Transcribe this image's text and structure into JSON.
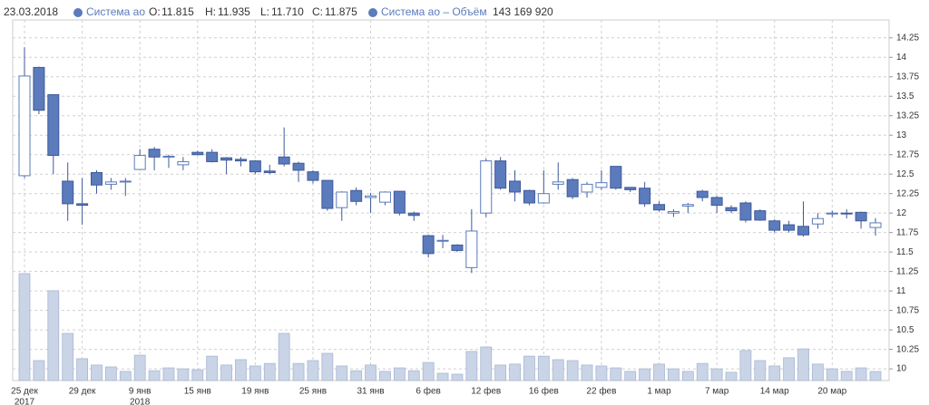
{
  "chart_data": {
    "type": "candlestick",
    "readout": {
      "date": "23.03.2018",
      "labels": [
        "O:",
        "H:",
        "L:",
        "C:"
      ],
      "values": [
        "11.815",
        "11.935",
        "11.710",
        "11.875"
      ],
      "volume": "143 169 920"
    },
    "categories": [
      "25 дек",
      null,
      null,
      null,
      "29 дек",
      null,
      null,
      null,
      "9 янв",
      null,
      null,
      null,
      "15 янв",
      null,
      null,
      null,
      "19 янв",
      null,
      null,
      null,
      "25 янв",
      null,
      null,
      null,
      "31 янв",
      null,
      null,
      null,
      "6 фев",
      null,
      null,
      null,
      "12 фев",
      null,
      null,
      null,
      "16 фев",
      null,
      null,
      null,
      "22 фев",
      null,
      null,
      null,
      "1 мар",
      null,
      null,
      null,
      "7 мар",
      null,
      null,
      null,
      "14 мар",
      null,
      null,
      null,
      "20 мар",
      null,
      null,
      null
    ],
    "category_years": [
      "2017",
      null,
      null,
      null,
      null,
      null,
      null,
      null,
      "2018",
      null,
      null,
      null,
      null,
      null,
      null,
      null,
      null,
      null,
      null,
      null,
      null,
      null,
      null,
      null,
      null,
      null,
      null,
      null,
      null,
      null,
      null,
      null,
      null,
      null,
      null,
      null,
      null,
      null,
      null,
      null,
      null,
      null,
      null,
      null,
      null,
      null,
      null,
      null,
      null,
      null,
      null,
      null,
      null,
      null,
      null,
      null,
      null,
      null,
      null,
      null
    ],
    "series": [
      {
        "name": "Система ао",
        "color": "#5b7bbd",
        "open": [
          12.48,
          13.87,
          13.52,
          12.41,
          12.12,
          12.52,
          12.37,
          12.4,
          12.56,
          12.82,
          12.72,
          12.62,
          12.78,
          12.78,
          12.71,
          12.69,
          12.67,
          12.54,
          12.72,
          12.64,
          12.53,
          12.42,
          12.07,
          12.29,
          12.2,
          12.14,
          12.28,
          12.0,
          11.71,
          11.64,
          11.59,
          11.3,
          12.0,
          12.67,
          12.41,
          12.29,
          12.13,
          12.37,
          12.43,
          12.27,
          12.33,
          12.6,
          12.33,
          12.32,
          12.11,
          12.0,
          12.09,
          12.28,
          12.2,
          12.07,
          12.13,
          12.03,
          11.9,
          11.85,
          11.83,
          11.86,
          11.99,
          12.0,
          12.01,
          11.815
        ],
        "high": [
          14.13,
          13.88,
          13.52,
          12.65,
          12.45,
          12.55,
          12.45,
          12.45,
          12.82,
          12.85,
          12.75,
          12.72,
          12.8,
          12.82,
          12.72,
          12.72,
          12.68,
          12.62,
          13.1,
          12.66,
          12.55,
          12.42,
          12.28,
          12.33,
          12.26,
          12.28,
          12.28,
          12.02,
          11.72,
          11.72,
          11.6,
          12.05,
          12.7,
          12.72,
          12.55,
          12.3,
          12.55,
          12.65,
          12.45,
          12.4,
          12.55,
          12.6,
          12.33,
          12.4,
          12.15,
          12.05,
          12.13,
          12.3,
          12.22,
          12.1,
          12.15,
          12.05,
          11.92,
          11.9,
          12.15,
          12.0,
          12.03,
          12.05,
          12.02,
          11.935
        ],
        "low": [
          12.45,
          13.27,
          12.5,
          11.9,
          11.85,
          12.25,
          12.3,
          12.22,
          12.55,
          12.55,
          12.58,
          12.55,
          12.74,
          12.65,
          12.5,
          12.6,
          12.5,
          12.5,
          12.6,
          12.4,
          12.38,
          12.03,
          11.9,
          12.1,
          12.0,
          12.1,
          11.97,
          11.9,
          11.43,
          11.55,
          11.5,
          11.23,
          11.95,
          12.3,
          12.15,
          12.1,
          12.12,
          12.3,
          12.18,
          12.2,
          12.3,
          12.3,
          12.27,
          12.08,
          12.02,
          11.95,
          12.0,
          12.15,
          12.0,
          12.0,
          11.88,
          11.9,
          11.75,
          11.75,
          11.7,
          11.8,
          11.95,
          11.93,
          11.8,
          11.71
        ],
        "close": [
          13.76,
          13.32,
          12.74,
          12.12,
          12.1,
          12.36,
          12.4,
          12.41,
          12.74,
          12.72,
          12.73,
          12.66,
          12.75,
          12.66,
          12.68,
          12.67,
          12.53,
          12.52,
          12.63,
          12.55,
          12.42,
          12.06,
          12.27,
          12.15,
          12.22,
          12.27,
          12.0,
          11.97,
          11.48,
          11.65,
          11.52,
          11.77,
          12.67,
          12.32,
          12.27,
          12.13,
          12.25,
          12.4,
          12.21,
          12.37,
          12.39,
          12.32,
          12.3,
          12.12,
          12.04,
          12.02,
          12.11,
          12.2,
          12.1,
          12.03,
          11.91,
          11.91,
          11.78,
          11.78,
          11.72,
          11.93,
          12.0,
          11.99,
          11.9,
          11.875
        ]
      },
      {
        "name": "Система ао – Объём",
        "color": "#c9d4e6",
        "axis": "y2",
        "values": [
          1690000000,
          315000000,
          1420000000,
          745000000,
          345000000,
          245000000,
          215000000,
          145000000,
          400000000,
          155000000,
          200000000,
          185000000,
          170000000,
          385000000,
          245000000,
          330000000,
          230000000,
          270000000,
          745000000,
          270000000,
          315000000,
          430000000,
          230000000,
          155000000,
          245000000,
          145000000,
          200000000,
          155000000,
          285000000,
          115000000,
          100000000,
          460000000,
          530000000,
          245000000,
          260000000,
          385000000,
          385000000,
          330000000,
          315000000,
          245000000,
          230000000,
          200000000,
          145000000,
          185000000,
          260000000,
          185000000,
          145000000,
          270000000,
          185000000,
          130000000,
          475000000,
          315000000,
          230000000,
          360000000,
          500000000,
          260000000,
          185000000,
          145000000,
          200000000,
          143169920
        ]
      }
    ],
    "ylim": [
      9.85,
      14.48
    ],
    "yticks": [
      10,
      10.25,
      10.5,
      10.75,
      11,
      11.25,
      11.5,
      11.75,
      12,
      12.25,
      12.5,
      12.75,
      13,
      13.25,
      13.5,
      13.75,
      14,
      14.25
    ],
    "y2lim": [
      0,
      5700000000
    ],
    "grid": true
  }
}
